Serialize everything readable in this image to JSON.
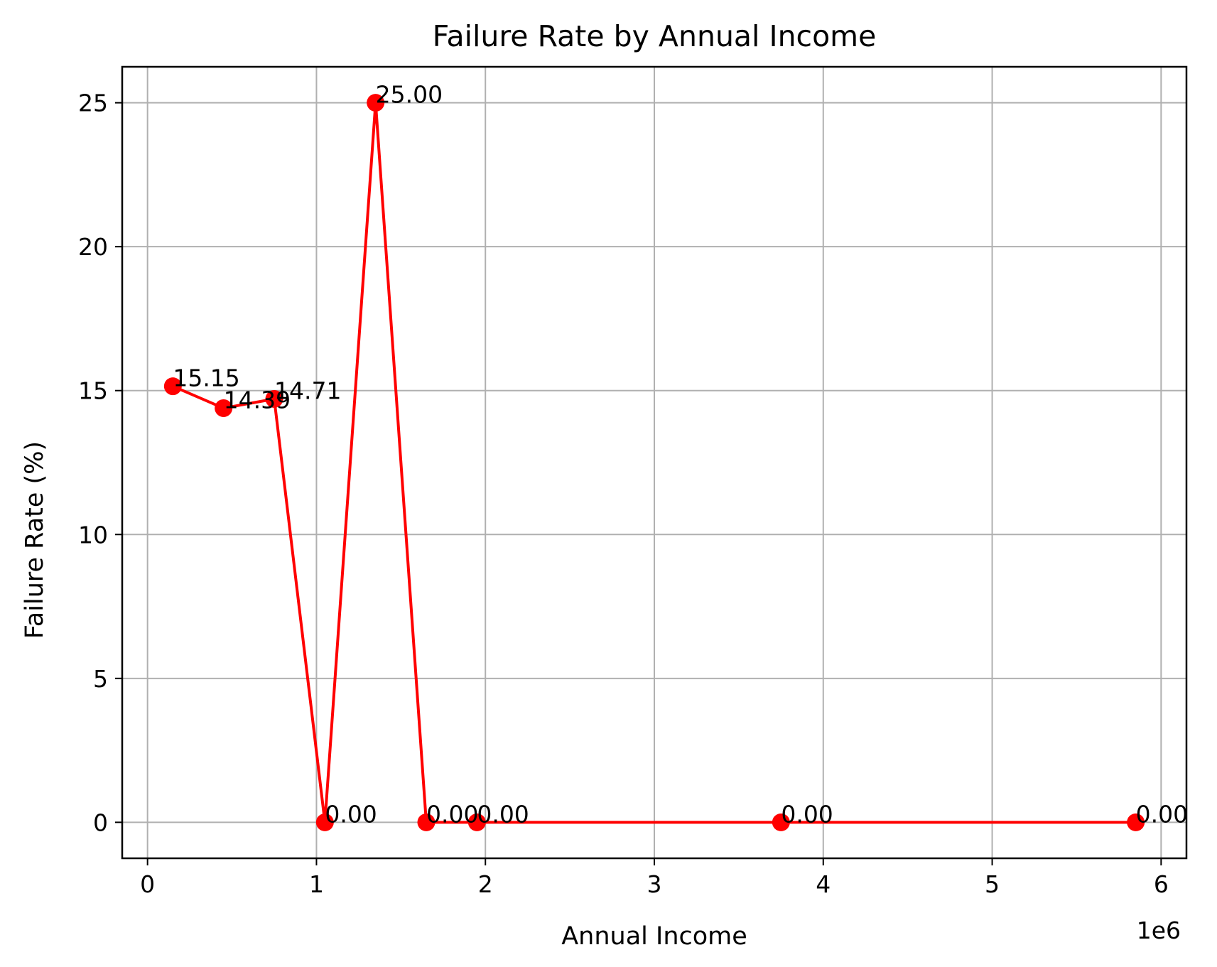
{
  "chart_data": {
    "type": "line",
    "title": "Failure Rate by Annual Income",
    "xlabel": "Annual Income",
    "ylabel": "Failure Rate (%)",
    "x_offset_text": "1e6",
    "x_scale_factor": 1000000,
    "xlim": [
      -150000,
      6150000
    ],
    "ylim": [
      -1.25,
      26.25
    ],
    "xticks": [
      0,
      1000000,
      2000000,
      3000000,
      4000000,
      5000000,
      6000000
    ],
    "xtick_labels": [
      "0",
      "1",
      "2",
      "3",
      "4",
      "5",
      "6"
    ],
    "yticks": [
      0,
      5,
      10,
      15,
      20,
      25
    ],
    "ytick_labels": [
      "0",
      "5",
      "10",
      "15",
      "20",
      "25"
    ],
    "grid": true,
    "series": [
      {
        "color": "#ff0000",
        "marker": "circle",
        "x": [
          150000,
          450000,
          750000,
          1050000,
          1350000,
          1650000,
          1950000,
          3750000,
          5850000
        ],
        "values": [
          15.15,
          14.39,
          14.71,
          0.0,
          25.0,
          0.0,
          0.0,
          0.0,
          0.0
        ],
        "labels": [
          "15.15",
          "14.39",
          "14.71",
          "0.00",
          "25.00",
          "0.00",
          "0.00",
          "0.00",
          "0.00"
        ]
      }
    ]
  }
}
